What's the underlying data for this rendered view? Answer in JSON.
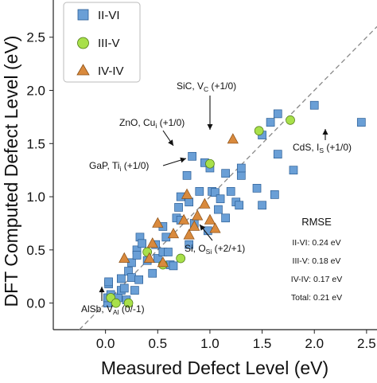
{
  "chart_data": {
    "type": "scatter",
    "xlabel": "Measured Defect Level (eV)",
    "ylabel": "DFT Computed Defect Level (eV)",
    "xlim": [
      -0.5,
      2.6
    ],
    "ylim": [
      -0.25,
      2.85
    ],
    "xticks": [
      0.0,
      0.5,
      1.0,
      1.5,
      2.0,
      2.5
    ],
    "yticks": [
      0.0,
      0.5,
      1.0,
      1.5,
      2.0,
      2.5
    ],
    "tick_labels": [
      "0.0",
      "0.5",
      "1.0",
      "1.5",
      "2.0",
      "2.5"
    ],
    "grid": false,
    "legend_position": "top-left",
    "reference_line": "y = x (dashed)",
    "series": [
      {
        "name": "II-VI",
        "marker": "square",
        "color": "#6a9fd6",
        "points": [
          [
            0.02,
            0.0
          ],
          [
            0.02,
            0.05
          ],
          [
            0.03,
            0.18
          ],
          [
            0.03,
            0.2
          ],
          [
            0.05,
            0.08
          ],
          [
            0.1,
            0.02
          ],
          [
            0.12,
            0.05
          ],
          [
            0.15,
            0.12
          ],
          [
            0.15,
            0.23
          ],
          [
            0.18,
            0.14
          ],
          [
            0.2,
            0.03
          ],
          [
            0.22,
            0.3
          ],
          [
            0.25,
            0.24
          ],
          [
            0.25,
            0.38
          ],
          [
            0.28,
            0.12
          ],
          [
            0.3,
            0.5
          ],
          [
            0.3,
            0.45
          ],
          [
            0.32,
            0.22
          ],
          [
            0.33,
            0.62
          ],
          [
            0.35,
            0.56
          ],
          [
            0.4,
            0.4
          ],
          [
            0.45,
            0.28
          ],
          [
            0.48,
            0.55
          ],
          [
            0.5,
            0.42
          ],
          [
            0.55,
            0.48
          ],
          [
            0.55,
            0.72
          ],
          [
            0.58,
            0.62
          ],
          [
            0.6,
            0.48
          ],
          [
            0.62,
            0.36
          ],
          [
            0.65,
            0.35
          ],
          [
            0.68,
            0.8
          ],
          [
            0.7,
            0.9
          ],
          [
            0.72,
            0.78
          ],
          [
            0.72,
            1.0
          ],
          [
            0.78,
            1.2
          ],
          [
            0.8,
            0.95
          ],
          [
            0.8,
            0.55
          ],
          [
            0.83,
            1.38
          ],
          [
            0.85,
            0.75
          ],
          [
            0.9,
            1.05
          ],
          [
            0.95,
            1.32
          ],
          [
            0.98,
            0.68
          ],
          [
            1.0,
            1.27
          ],
          [
            1.02,
            1.05
          ],
          [
            1.05,
            1.04
          ],
          [
            1.08,
            0.88
          ],
          [
            1.1,
            0.98
          ],
          [
            1.15,
            0.8
          ],
          [
            1.15,
            1.22
          ],
          [
            1.2,
            1.05
          ],
          [
            1.25,
            0.95
          ],
          [
            1.28,
            0.92
          ],
          [
            1.3,
            1.2
          ],
          [
            1.3,
            1.27
          ],
          [
            1.45,
            1.08
          ],
          [
            1.5,
            1.58
          ],
          [
            1.5,
            0.92
          ],
          [
            1.58,
            1.7
          ],
          [
            1.62,
            1.02
          ],
          [
            1.65,
            1.78
          ],
          [
            1.65,
            1.4
          ],
          [
            1.8,
            1.25
          ],
          [
            2.0,
            1.86
          ],
          [
            2.45,
            1.7
          ]
        ]
      },
      {
        "name": "III-V",
        "marker": "circle",
        "color": "#a8e04a",
        "points": [
          [
            0.05,
            0.05
          ],
          [
            0.1,
            0.0
          ],
          [
            0.22,
            0.0
          ],
          [
            0.4,
            0.48
          ],
          [
            0.55,
            0.36
          ],
          [
            0.72,
            0.42
          ],
          [
            1.0,
            1.31
          ],
          [
            1.47,
            1.62
          ],
          [
            1.77,
            1.72
          ]
        ]
      },
      {
        "name": "IV-IV",
        "marker": "triangle",
        "color": "#d98a3d",
        "points": [
          [
            0.18,
            0.42
          ],
          [
            0.42,
            0.42
          ],
          [
            0.45,
            0.56
          ],
          [
            0.5,
            0.75
          ],
          [
            0.55,
            0.38
          ],
          [
            0.65,
            0.65
          ],
          [
            0.75,
            0.78
          ],
          [
            0.78,
            1.02
          ],
          [
            0.8,
            0.64
          ],
          [
            0.85,
            0.72
          ],
          [
            0.88,
            0.82
          ],
          [
            0.95,
            0.93
          ],
          [
            1.0,
            0.78
          ],
          [
            1.05,
            0.7
          ],
          [
            1.22,
            1.54
          ]
        ]
      }
    ],
    "annotations": [
      {
        "id": "sic",
        "label": "SiC, V",
        "sub": "C",
        "suffix": " (+1/0)",
        "x": 1.22,
        "y": 1.54
      },
      {
        "id": "zno",
        "label": "ZnO, Cu",
        "sub": "i",
        "suffix": " (+1/0)",
        "x": 0.83,
        "y": 1.38
      },
      {
        "id": "gap",
        "label": "GaP, Ti",
        "sub": "i",
        "suffix": " (+1/0)",
        "x": 1.0,
        "y": 1.31
      },
      {
        "id": "cds",
        "label": "CdS, I",
        "sub": "S",
        "suffix": " (+1/0)",
        "x": 2.45,
        "y": 1.7
      },
      {
        "id": "si",
        "label": "Si, O",
        "sub": "Si",
        "suffix": " (+2/+1)",
        "x": 1.05,
        "y": 0.7
      },
      {
        "id": "alsb",
        "label": "AlSb, V",
        "sub": "Al",
        "suffix": " (0/-1)",
        "x": 0.05,
        "y": 0.05
      }
    ],
    "rmse": {
      "title": "RMSE",
      "rows": [
        "II-VI: 0.24 eV",
        "III-V: 0.18 eV",
        "IV-IV: 0.17 eV",
        "Total: 0.21 eV"
      ]
    }
  }
}
